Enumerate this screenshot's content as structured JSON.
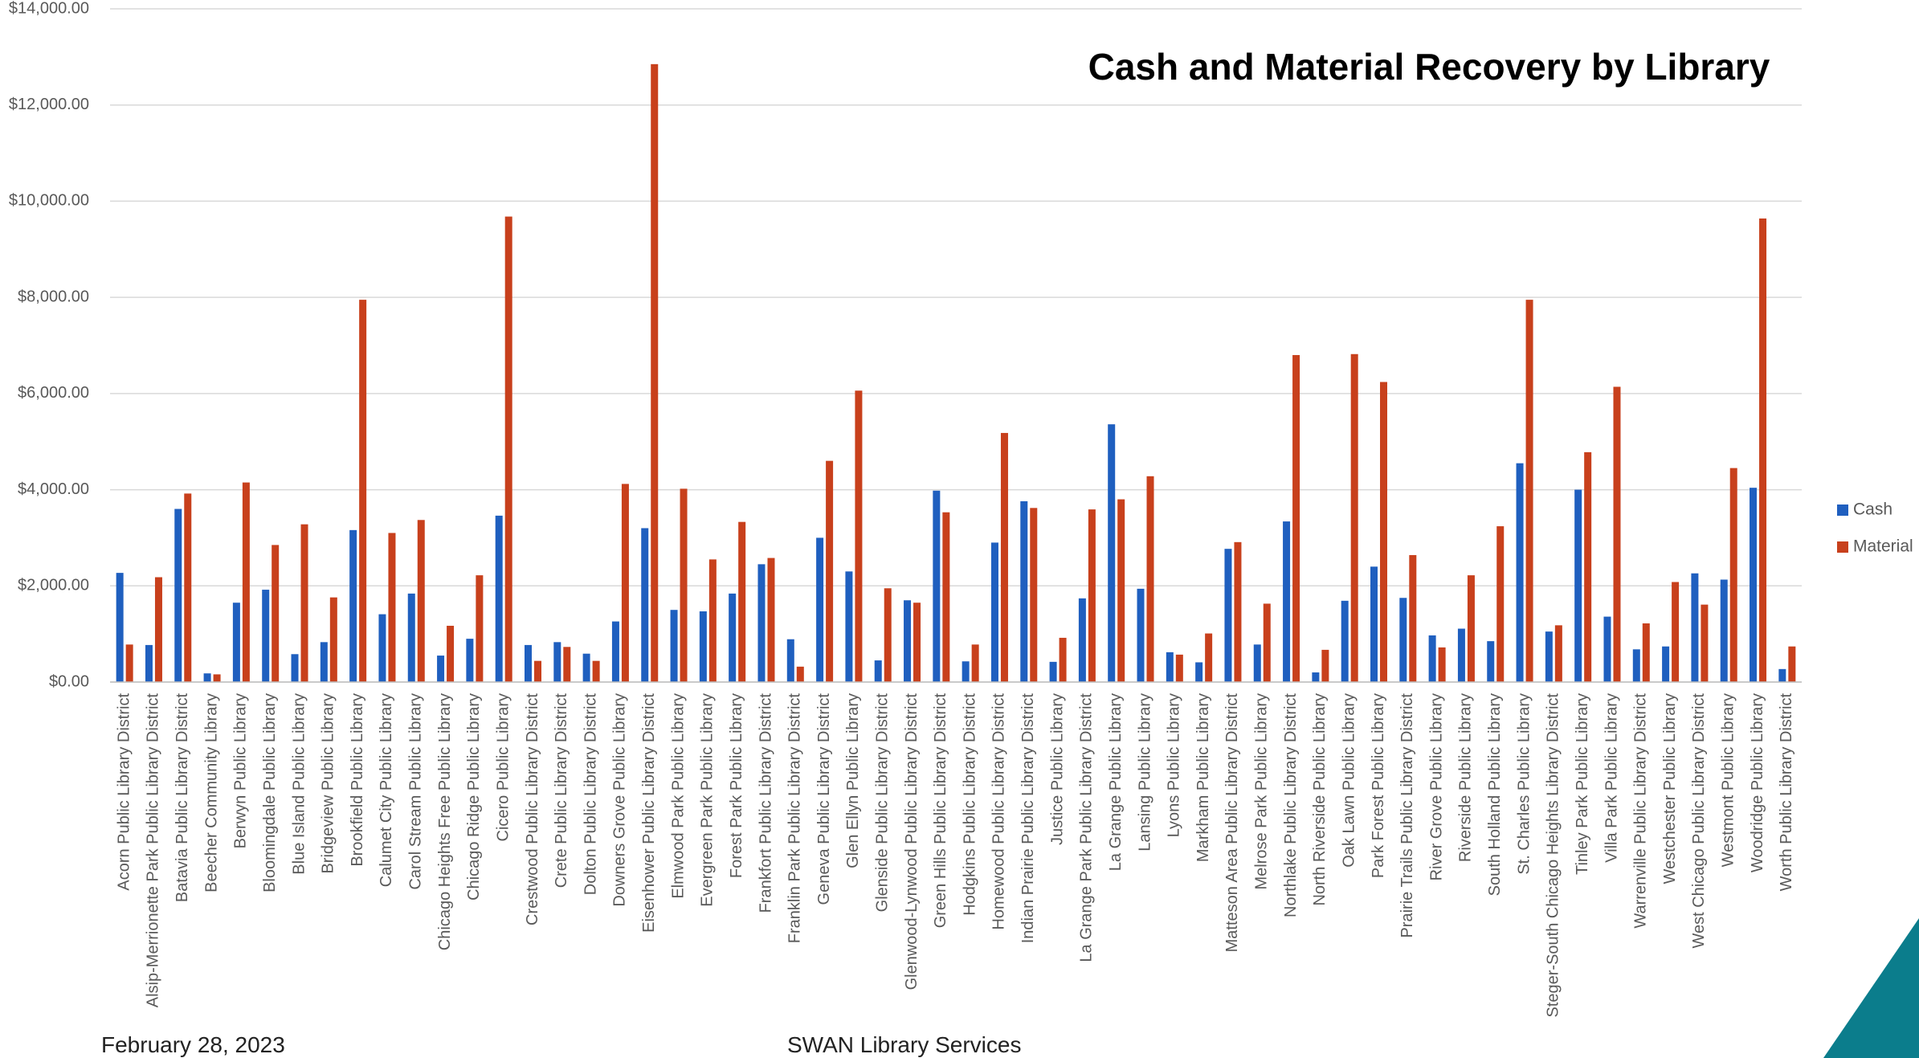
{
  "chart_data": {
    "type": "bar",
    "title": "Cash and Material Recovery by Library",
    "categories": [
      "Acorn Public Library District",
      "Alsip-Merrionette Park Public Library District",
      "Batavia Public Library District",
      "Beecher Community Library",
      "Berwyn Public Library",
      "Bloomingdale Public Library",
      "Blue Island Public Library",
      "Bridgeview Public Library",
      "Brookfield Public Library",
      "Calumet City Public Library",
      "Carol Stream Public Library",
      "Chicago Heights Free Public Library",
      "Chicago Ridge Public Library",
      "Cicero Public Library",
      "Crestwood Public Library District",
      "Crete Public Library District",
      "Dolton Public Library District",
      "Downers Grove Public Library",
      "Eisenhower Public Library District",
      "Elmwood Park Public Library",
      "Evergreen Park Public Library",
      "Forest Park Public Library",
      "Frankfort Public Library District",
      "Franklin Park Public Library District",
      "Geneva Public Library District",
      "Glen Ellyn Public Library",
      "Glenside Public Library District",
      "Glenwood-Lynwood Public Library District",
      "Green Hills Public Library District",
      "Hodgkins Public Library District",
      "Homewood Public Library District",
      "Indian Prairie Public Library District",
      "Justice Public Library",
      "La Grange Park Public Library District",
      "La Grange Public Library",
      "Lansing Public Library",
      "Lyons Public Library",
      "Markham Public Library",
      "Matteson Area Public Library District",
      "Melrose Park Public Library",
      "Northlake Public Library District",
      "North Riverside Public Library",
      "Oak Lawn Public Library",
      "Park Forest Public Library",
      "Prairie Trails Public Library District",
      "River Grove Public Library",
      "Riverside Public Library",
      "South Holland Public Library",
      "St. Charles Public Library",
      "Steger-South Chicago Heights Library District",
      "Tinley Park Public Library",
      "Villa Park Public Library",
      "Warrenville Public Library District",
      "Westchester Public Library",
      "West Chicago Public Library District",
      "Westmont Public Library",
      "Woodridge Public Library",
      "Worth Public Library District"
    ],
    "series": [
      {
        "name": "Cash",
        "color": "#1f5fbf",
        "values": [
          2270,
          770,
          3600,
          180,
          1650,
          1920,
          580,
          830,
          3160,
          1410,
          1840,
          550,
          900,
          3460,
          770,
          830,
          590,
          1260,
          3200,
          1500,
          1470,
          1840,
          2450,
          890,
          3000,
          2300,
          450,
          1700,
          3980,
          430,
          2900,
          3760,
          420,
          1740,
          5360,
          1940,
          620,
          410,
          2770,
          780,
          3340,
          200,
          1690,
          2400,
          1750,
          970,
          1110,
          850,
          4550,
          1050,
          4000,
          1360,
          680,
          740,
          2260,
          2130,
          4040,
          270
        ]
      },
      {
        "name": "Material",
        "color": "#c8401c",
        "values": [
          780,
          2180,
          3920,
          160,
          4150,
          2850,
          3280,
          1760,
          7950,
          3100,
          3370,
          1170,
          2220,
          9680,
          440,
          730,
          440,
          4120,
          12850,
          4020,
          2550,
          3330,
          2580,
          320,
          4600,
          6060,
          1950,
          1650,
          3530,
          780,
          5180,
          3620,
          920,
          3590,
          3800,
          4280,
          570,
          1010,
          2910,
          1630,
          6800,
          670,
          6820,
          6240,
          2640,
          720,
          2220,
          3240,
          7950,
          1180,
          4780,
          6140,
          1220,
          2080,
          1610,
          4450,
          9640,
          740
        ]
      }
    ],
    "ylim": [
      0,
      14000
    ],
    "yticks": [
      {
        "value": 0,
        "label": "$0.00"
      },
      {
        "value": 2000,
        "label": "$2,000.00"
      },
      {
        "value": 4000,
        "label": "$4,000.00"
      },
      {
        "value": 6000,
        "label": "$6,000.00"
      },
      {
        "value": 8000,
        "label": "$8,000.00"
      },
      {
        "value": 10000,
        "label": "$10,000.00"
      },
      {
        "value": 12000,
        "label": "$12,000.00"
      },
      {
        "value": 14000,
        "label": "$14,000.00"
      }
    ],
    "grid": true,
    "legend": "right"
  },
  "footer": {
    "date": "February 28, 2023",
    "organization": "SWAN Library Services"
  }
}
